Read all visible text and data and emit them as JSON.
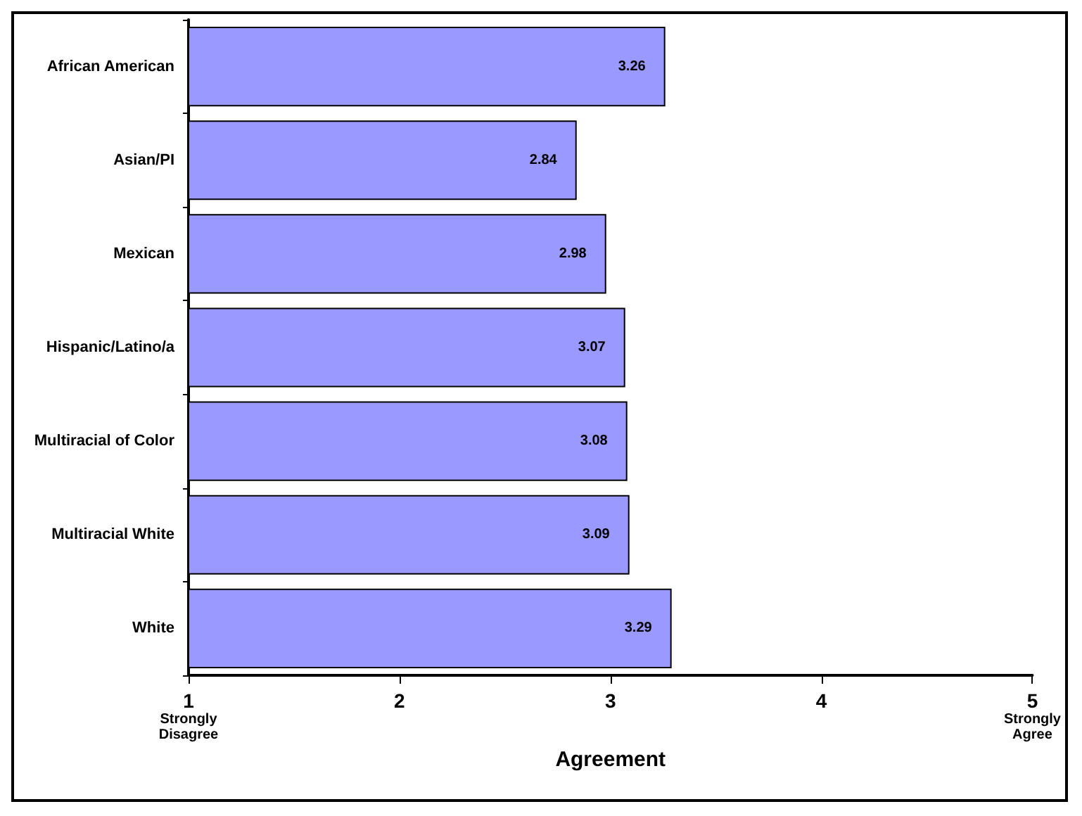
{
  "chart_data": {
    "type": "bar",
    "orientation": "horizontal",
    "xlabel": "Agreement",
    "categories": [
      "African American",
      "Asian/PI",
      "Mexican",
      "Hispanic/Latino/a",
      "Multiracial of Color",
      "Multiracial White",
      "White"
    ],
    "values": [
      3.26,
      2.84,
      2.98,
      3.07,
      3.08,
      3.09,
      3.29
    ],
    "color": "#9999ff",
    "xlim": [
      1,
      5
    ],
    "xticks": [
      {
        "value": 1,
        "label": "1\nStrongly\nDisagree"
      },
      2,
      3,
      4,
      {
        "value": 5,
        "label": "5\nStrongly\nAgree"
      }
    ],
    "data_labels": true,
    "grid": false
  }
}
